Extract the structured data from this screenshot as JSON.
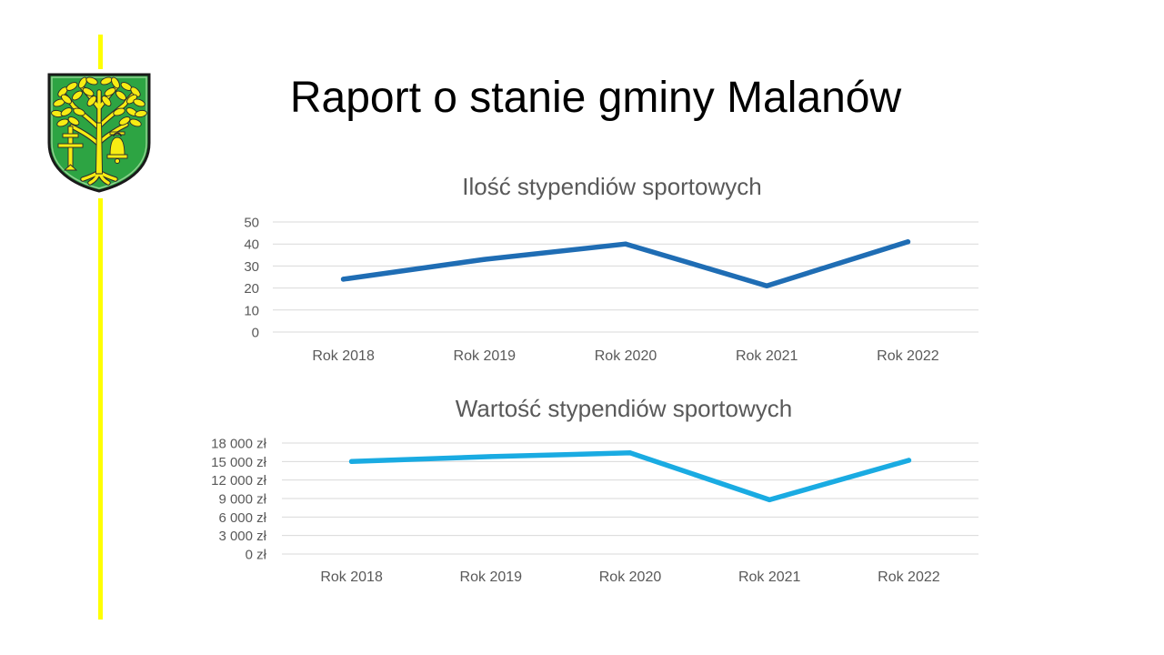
{
  "slide": {
    "title": "Raport o stanie gminy Malanów"
  },
  "logo": {
    "icon": "coat-of-arms-icon"
  },
  "colors": {
    "accent_line": "#FFFF00",
    "title_text": "#000000",
    "chart_text": "#595959",
    "gridline": "#D9D9D9",
    "shield_green": "#2DA443",
    "shield_gold": "#F7EC13"
  },
  "chart_data": [
    {
      "type": "line",
      "title": "Ilość stypendiów sportowych",
      "categories": [
        "Rok 2018",
        "Rok 2019",
        "Rok 2020",
        "Rok 2021",
        "Rok 2022"
      ],
      "series": [
        {
          "values": [
            24,
            33,
            40,
            21,
            41
          ],
          "color": "#1F6DB4"
        }
      ],
      "ylim": [
        0,
        50
      ],
      "yticks": [
        0,
        10,
        20,
        30,
        40,
        50
      ],
      "ytick_labels": [
        "0",
        "10",
        "20",
        "30",
        "40",
        "50"
      ],
      "grid": true
    },
    {
      "type": "line",
      "title": "Wartość stypendiów sportowych",
      "categories": [
        "Rok 2018",
        "Rok 2019",
        "Rok 2020",
        "Rok 2021",
        "Rok 2022"
      ],
      "series": [
        {
          "values": [
            15000,
            15800,
            16400,
            8800,
            15200
          ],
          "color": "#1AABE2"
        }
      ],
      "ylim": [
        0,
        18000
      ],
      "yticks": [
        0,
        3000,
        6000,
        9000,
        12000,
        15000,
        18000
      ],
      "ytick_labels": [
        "0 zł",
        "3 000 zł",
        "6 000 zł",
        "9 000 zł",
        "12 000 zł",
        "15 000 zł",
        "18 000 zł"
      ],
      "grid": true
    }
  ]
}
